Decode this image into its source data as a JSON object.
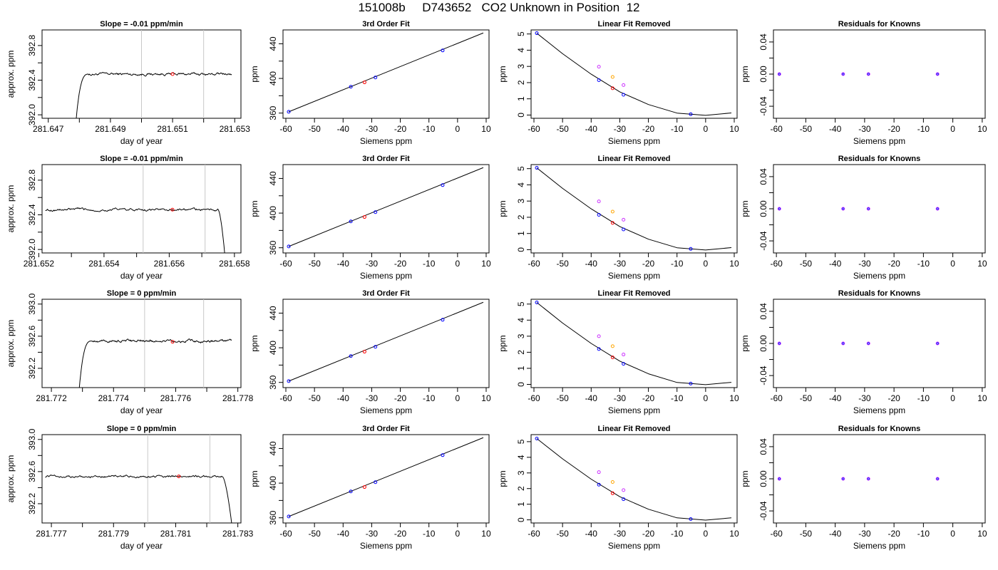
{
  "page": {
    "title": "151008b     D743652   CO2 Unknown in Position  12"
  },
  "colors": {
    "axis": "#000000",
    "vline": "#c8c8c8",
    "known": "#0000ff",
    "unknown": "#ff0000",
    "orange": "#ffa500",
    "magenta": "#cc33ff",
    "curve": "#000000"
  },
  "chart_data": [
    {
      "type": "line",
      "title": "Slope =  -0.01  ppm/min",
      "xlabel": "day of year",
      "ylabel": "approx. ppm",
      "xlim": [
        281.6468,
        281.6532
      ],
      "ylim": [
        391.96,
        392.98
      ],
      "xticks": [
        "281.647",
        "281.649",
        "281.651",
        "281.653"
      ],
      "xtickvals": [
        281.647,
        281.649,
        281.651,
        281.653
      ],
      "xminor": [
        281.648,
        281.65,
        281.652
      ],
      "yticks": [
        "392.0",
        "392.4",
        "392.8"
      ],
      "ytickvals": [
        392.0,
        392.4,
        392.8
      ],
      "yminor": [
        392.2,
        392.6
      ],
      "vlines": [
        281.65,
        281.652
      ],
      "trace": {
        "start_x": 281.6479,
        "end_x": 281.6529,
        "level": 392.47,
        "rise_from": 391.96,
        "rise_to_x": 281.6483,
        "noise": 0.012,
        "shape": "rise"
      },
      "marker": {
        "x": 281.651,
        "y": 392.47
      }
    },
    {
      "type": "line",
      "title": "3rd Order Fit",
      "xlabel": "Siemens ppm",
      "ylabel": "ppm",
      "xlim": [
        -61,
        11
      ],
      "ylim": [
        354,
        456
      ],
      "xticks": [
        "-60",
        "-50",
        "-40",
        "-30",
        "-20",
        "-10",
        "0",
        "10"
      ],
      "xtickvals": [
        -60,
        -50,
        -40,
        -30,
        -20,
        -10,
        0,
        10
      ],
      "yticks": [
        "360",
        "400",
        "440"
      ],
      "ytickvals": [
        360,
        400,
        440
      ],
      "yminor": [
        380,
        420
      ],
      "fit_line": {
        "x": [
          -59,
          9
        ],
        "y": [
          361.5,
          452.5
        ]
      },
      "knowns": {
        "x": [
          -59,
          -37.3,
          -28.7,
          -5.2
        ],
        "y": [
          361.5,
          390.4,
          401.1,
          432.3
        ]
      },
      "unknown": {
        "x": [
          -32.5
        ],
        "y": [
          395.5
        ]
      }
    },
    {
      "type": "scatter",
      "title": "Linear Fit Removed",
      "xlabel": "Siemens ppm",
      "ylabel": "ppm",
      "xlim": [
        -61,
        11
      ],
      "ylim": [
        -0.2,
        5.25
      ],
      "xticks": [
        "-60",
        "-50",
        "-40",
        "-30",
        "-20",
        "-10",
        "0",
        "10"
      ],
      "xtickvals": [
        -60,
        -50,
        -40,
        -30,
        -20,
        -10,
        0,
        10
      ],
      "yticks": [
        "0",
        "1",
        "2",
        "3",
        "4",
        "5"
      ],
      "ytickvals": [
        0,
        1,
        2,
        3,
        4,
        5
      ],
      "curve": {
        "x": [
          -59,
          -50,
          -40,
          -30,
          -20,
          -10,
          0,
          9
        ],
        "y": [
          5.05,
          3.78,
          2.52,
          1.43,
          0.65,
          0.12,
          -0.02,
          0.13
        ]
      },
      "knowns": {
        "x": [
          -59,
          -37.3,
          -28.7,
          -5.2
        ],
        "y": [
          5.05,
          2.15,
          1.25,
          0.05
        ]
      },
      "unknown": {
        "x": [
          -32.5
        ],
        "y": [
          1.65
        ]
      },
      "extra": [
        {
          "x": -37.3,
          "y": 2.98,
          "color": "magenta"
        },
        {
          "x": -32.5,
          "y": 2.35,
          "color": "orange"
        },
        {
          "x": -28.7,
          "y": 1.85,
          "color": "magenta"
        }
      ]
    },
    {
      "type": "scatter",
      "title": "Residuals for Knowns",
      "xlabel": "Siemens ppm",
      "ylabel": "ppm",
      "xlim": [
        -61,
        11
      ],
      "ylim": [
        -0.055,
        0.055
      ],
      "xticks": [
        "-60",
        "-50",
        "-40",
        "-30",
        "-20",
        "-10",
        "0",
        "10"
      ],
      "xtickvals": [
        -60,
        -50,
        -40,
        -30,
        -20,
        -10,
        0,
        10
      ],
      "yticks": [
        "-0.04",
        "0.00",
        "0.04"
      ],
      "ytickvals": [
        -0.04,
        0.0,
        0.04
      ],
      "yminor": [
        -0.02,
        0.02
      ],
      "points": {
        "x": [
          -59,
          -37.3,
          -28.7,
          -5.2
        ],
        "y": [
          0,
          0,
          0,
          0
        ]
      }
    },
    {
      "type": "line",
      "title": "Slope =  -0.01  ppm/min",
      "xlabel": "day of year",
      "ylabel": "approx. ppm",
      "xlim": [
        281.6521,
        281.6582
      ],
      "ylim": [
        391.96,
        392.98
      ],
      "xticks": [
        "281.652",
        "281.654",
        "281.656",
        "281.658"
      ],
      "xtickvals": [
        281.652,
        281.654,
        281.656,
        281.658
      ],
      "xminor": [
        281.653,
        281.655,
        281.657
      ],
      "yticks": [
        "392.0",
        "392.4",
        "392.8"
      ],
      "ytickvals": [
        392.0,
        392.4,
        392.8
      ],
      "yminor": [
        392.2,
        392.6
      ],
      "vlines": [
        281.6552,
        281.6571
      ],
      "trace": {
        "start_x": 281.6522,
        "end_x": 281.6577,
        "level": 392.46,
        "fall_to": 391.96,
        "fall_from_x": 281.6575,
        "noise": 0.012,
        "shape": "fall"
      },
      "marker": {
        "x": 281.6561,
        "y": 392.46
      }
    },
    {
      "type": "line",
      "title": "3rd Order Fit",
      "xlabel": "Siemens ppm",
      "ylabel": "ppm",
      "xlim": [
        -61,
        11
      ],
      "ylim": [
        354,
        456
      ],
      "xticks": [
        "-60",
        "-50",
        "-40",
        "-30",
        "-20",
        "-10",
        "0",
        "10"
      ],
      "xtickvals": [
        -60,
        -50,
        -40,
        -30,
        -20,
        -10,
        0,
        10
      ],
      "yticks": [
        "360",
        "400",
        "440"
      ],
      "ytickvals": [
        360,
        400,
        440
      ],
      "yminor": [
        380,
        420
      ],
      "fit_line": {
        "x": [
          -59,
          9
        ],
        "y": [
          361.5,
          452.5
        ]
      },
      "knowns": {
        "x": [
          -59,
          -37.3,
          -28.7,
          -5.2
        ],
        "y": [
          361.5,
          390.4,
          401.1,
          432.3
        ]
      },
      "unknown": {
        "x": [
          -32.5
        ],
        "y": [
          395.5
        ]
      }
    },
    {
      "type": "scatter",
      "title": "Linear Fit Removed",
      "xlabel": "Siemens ppm",
      "ylabel": "ppm",
      "xlim": [
        -61,
        11
      ],
      "ylim": [
        -0.2,
        5.25
      ],
      "xticks": [
        "-60",
        "-50",
        "-40",
        "-30",
        "-20",
        "-10",
        "0",
        "10"
      ],
      "xtickvals": [
        -60,
        -50,
        -40,
        -30,
        -20,
        -10,
        0,
        10
      ],
      "yticks": [
        "0",
        "1",
        "2",
        "3",
        "4",
        "5"
      ],
      "ytickvals": [
        0,
        1,
        2,
        3,
        4,
        5
      ],
      "curve": {
        "x": [
          -59,
          -50,
          -40,
          -30,
          -20,
          -10,
          0,
          9
        ],
        "y": [
          5.05,
          3.78,
          2.52,
          1.43,
          0.65,
          0.12,
          -0.02,
          0.13
        ]
      },
      "knowns": {
        "x": [
          -59,
          -37.3,
          -28.7,
          -5.2
        ],
        "y": [
          5.05,
          2.15,
          1.25,
          0.05
        ]
      },
      "unknown": {
        "x": [
          -32.5
        ],
        "y": [
          1.65
        ]
      },
      "extra": [
        {
          "x": -37.3,
          "y": 2.98,
          "color": "magenta"
        },
        {
          "x": -32.5,
          "y": 2.35,
          "color": "orange"
        },
        {
          "x": -28.7,
          "y": 1.85,
          "color": "magenta"
        }
      ]
    },
    {
      "type": "scatter",
      "title": "Residuals for Knowns",
      "xlabel": "Siemens ppm",
      "ylabel": "ppm",
      "xlim": [
        -61,
        11
      ],
      "ylim": [
        -0.055,
        0.055
      ],
      "xticks": [
        "-60",
        "-50",
        "-40",
        "-30",
        "-20",
        "-10",
        "0",
        "10"
      ],
      "xtickvals": [
        -60,
        -50,
        -40,
        -30,
        -20,
        -10,
        0,
        10
      ],
      "yticks": [
        "-0.04",
        "0.00",
        "0.04"
      ],
      "ytickvals": [
        -0.04,
        0.0,
        0.04
      ],
      "yminor": [
        -0.02,
        0.02
      ],
      "points": {
        "x": [
          -59,
          -37.3,
          -28.7,
          -5.2
        ],
        "y": [
          0,
          0,
          0,
          0
        ]
      }
    },
    {
      "type": "line",
      "title": "Slope =  0  ppm/min",
      "xlabel": "day of year",
      "ylabel": "approx. ppm",
      "xlim": [
        281.7717,
        281.7781
      ],
      "ylim": [
        391.96,
        393.06
      ],
      "xticks": [
        "281.772",
        "281.774",
        "281.776",
        "281.778"
      ],
      "xtickvals": [
        281.772,
        281.774,
        281.776,
        281.778
      ],
      "xminor": [
        281.773,
        281.775,
        281.777
      ],
      "yticks": [
        "392.2",
        "392.6",
        "393.0"
      ],
      "ytickvals": [
        392.2,
        392.6,
        393.0
      ],
      "yminor": [
        392.4,
        392.8
      ],
      "vlines": [
        281.775,
        281.7769
      ],
      "trace": {
        "start_x": 281.7729,
        "end_x": 281.7778,
        "level": 392.54,
        "rise_from": 391.96,
        "rise_to_x": 281.7733,
        "noise": 0.014,
        "shape": "rise"
      },
      "marker": {
        "x": 281.7759,
        "y": 392.53
      }
    },
    {
      "type": "line",
      "title": "3rd Order Fit",
      "xlabel": "Siemens ppm",
      "ylabel": "ppm",
      "xlim": [
        -61,
        11
      ],
      "ylim": [
        354,
        456
      ],
      "xticks": [
        "-60",
        "-50",
        "-40",
        "-30",
        "-20",
        "-10",
        "0",
        "10"
      ],
      "xtickvals": [
        -60,
        -50,
        -40,
        -30,
        -20,
        -10,
        0,
        10
      ],
      "yticks": [
        "360",
        "400",
        "440"
      ],
      "ytickvals": [
        360,
        400,
        440
      ],
      "yminor": [
        380,
        420
      ],
      "fit_line": {
        "x": [
          -59,
          9
        ],
        "y": [
          361.5,
          452.5
        ]
      },
      "knowns": {
        "x": [
          -59,
          -37.3,
          -28.7,
          -5.2
        ],
        "y": [
          361.5,
          390.4,
          401.1,
          432.3
        ]
      },
      "unknown": {
        "x": [
          -32.5
        ],
        "y": [
          395.5
        ]
      }
    },
    {
      "type": "scatter",
      "title": "Linear Fit Removed",
      "xlabel": "Siemens ppm",
      "ylabel": "ppm",
      "xlim": [
        -61,
        11
      ],
      "ylim": [
        -0.2,
        5.3
      ],
      "xticks": [
        "-60",
        "-50",
        "-40",
        "-30",
        "-20",
        "-10",
        "0",
        "10"
      ],
      "xtickvals": [
        -60,
        -50,
        -40,
        -30,
        -20,
        -10,
        0,
        10
      ],
      "yticks": [
        "0",
        "1",
        "2",
        "3",
        "4",
        "5"
      ],
      "ytickvals": [
        0,
        1,
        2,
        3,
        4,
        5
      ],
      "curve": {
        "x": [
          -59,
          -50,
          -40,
          -30,
          -20,
          -10,
          0,
          9
        ],
        "y": [
          5.1,
          3.82,
          2.55,
          1.45,
          0.66,
          0.12,
          -0.02,
          0.13
        ]
      },
      "knowns": {
        "x": [
          -59,
          -37.3,
          -28.7,
          -5.2
        ],
        "y": [
          5.1,
          2.2,
          1.28,
          0.05
        ]
      },
      "unknown": {
        "x": [
          -32.5
        ],
        "y": [
          1.68
        ]
      },
      "extra": [
        {
          "x": -37.3,
          "y": 3.0,
          "color": "magenta"
        },
        {
          "x": -32.5,
          "y": 2.38,
          "color": "orange"
        },
        {
          "x": -28.7,
          "y": 1.86,
          "color": "magenta"
        }
      ]
    },
    {
      "type": "scatter",
      "title": "Residuals for Knowns",
      "xlabel": "Siemens ppm",
      "ylabel": "ppm",
      "xlim": [
        -61,
        11
      ],
      "ylim": [
        -0.055,
        0.055
      ],
      "xticks": [
        "-60",
        "-50",
        "-40",
        "-30",
        "-20",
        "-10",
        "0",
        "10"
      ],
      "xtickvals": [
        -60,
        -50,
        -40,
        -30,
        -20,
        -10,
        0,
        10
      ],
      "yticks": [
        "-0.04",
        "0.00",
        "0.04"
      ],
      "ytickvals": [
        -0.04,
        0.0,
        0.04
      ],
      "yminor": [
        -0.02,
        0.02
      ],
      "points": {
        "x": [
          -59,
          -37.3,
          -28.7,
          -5.2
        ],
        "y": [
          0,
          0,
          0,
          0
        ]
      }
    },
    {
      "type": "line",
      "title": "Slope =  0  ppm/min",
      "xlabel": "day of year",
      "ylabel": "approx. ppm",
      "xlim": [
        281.7767,
        281.7831
      ],
      "ylim": [
        391.96,
        393.06
      ],
      "xticks": [
        "281.777",
        "281.779",
        "281.781",
        "281.783"
      ],
      "xtickvals": [
        281.777,
        281.779,
        281.781,
        281.783
      ],
      "xminor": [
        281.778,
        281.78,
        281.782
      ],
      "yticks": [
        "392.2",
        "392.6",
        "393.0"
      ],
      "ytickvals": [
        392.2,
        392.6,
        393.0
      ],
      "yminor": [
        392.4,
        392.8
      ],
      "vlines": [
        281.7801,
        281.7821
      ],
      "trace": {
        "start_x": 281.7768,
        "end_x": 281.7828,
        "level": 392.54,
        "fall_to": 391.96,
        "fall_from_x": 281.7825,
        "noise": 0.012,
        "shape": "fall"
      },
      "marker": {
        "x": 281.7811,
        "y": 392.54
      }
    },
    {
      "type": "line",
      "title": "3rd Order Fit",
      "xlabel": "Siemens ppm",
      "ylabel": "ppm",
      "xlim": [
        -61,
        11
      ],
      "ylim": [
        354,
        456
      ],
      "xticks": [
        "-60",
        "-50",
        "-40",
        "-30",
        "-20",
        "-10",
        "0",
        "10"
      ],
      "xtickvals": [
        -60,
        -50,
        -40,
        -30,
        -20,
        -10,
        0,
        10
      ],
      "yticks": [
        "360",
        "400",
        "440"
      ],
      "ytickvals": [
        360,
        400,
        440
      ],
      "yminor": [
        380,
        420
      ],
      "fit_line": {
        "x": [
          -59,
          9
        ],
        "y": [
          361.5,
          452.5
        ]
      },
      "knowns": {
        "x": [
          -59,
          -37.3,
          -28.7,
          -5.2
        ],
        "y": [
          361.5,
          390.4,
          401.1,
          432.3
        ]
      },
      "unknown": {
        "x": [
          -32.5
        ],
        "y": [
          395.5
        ]
      }
    },
    {
      "type": "scatter",
      "title": "Linear Fit Removed",
      "xlabel": "Siemens ppm",
      "ylabel": "ppm",
      "xlim": [
        -61,
        11
      ],
      "ylim": [
        -0.2,
        5.45
      ],
      "xticks": [
        "-60",
        "-50",
        "-40",
        "-30",
        "-20",
        "-10",
        "0",
        "10"
      ],
      "xtickvals": [
        -60,
        -50,
        -40,
        -30,
        -20,
        -10,
        0,
        10
      ],
      "yticks": [
        "0",
        "1",
        "2",
        "3",
        "4",
        "5"
      ],
      "ytickvals": [
        0,
        1,
        2,
        3,
        4,
        5
      ],
      "curve": {
        "x": [
          -59,
          -50,
          -40,
          -30,
          -20,
          -10,
          0,
          9
        ],
        "y": [
          5.2,
          3.9,
          2.6,
          1.48,
          0.68,
          0.13,
          -0.02,
          0.13
        ]
      },
      "knowns": {
        "x": [
          -59,
          -37.3,
          -28.7,
          -5.2
        ],
        "y": [
          5.2,
          2.25,
          1.32,
          0.05
        ]
      },
      "unknown": {
        "x": [
          -32.5
        ],
        "y": [
          1.7
        ]
      },
      "extra": [
        {
          "x": -37.3,
          "y": 3.05,
          "color": "magenta"
        },
        {
          "x": -32.5,
          "y": 2.42,
          "color": "orange"
        },
        {
          "x": -28.7,
          "y": 1.9,
          "color": "magenta"
        }
      ]
    },
    {
      "type": "scatter",
      "title": "Residuals for Knowns",
      "xlabel": "Siemens ppm",
      "ylabel": "ppm",
      "xlim": [
        -61,
        11
      ],
      "ylim": [
        -0.055,
        0.055
      ],
      "xticks": [
        "-60",
        "-50",
        "-40",
        "-30",
        "-20",
        "-10",
        "0",
        "10"
      ],
      "xtickvals": [
        -60,
        -50,
        -40,
        -30,
        -20,
        -10,
        0,
        10
      ],
      "yticks": [
        "-0.04",
        "0.00",
        "0.04"
      ],
      "ytickvals": [
        -0.04,
        0.0,
        0.04
      ],
      "yminor": [
        -0.02,
        0.02
      ],
      "points": {
        "x": [
          -59,
          -37.3,
          -28.7,
          -5.2
        ],
        "y": [
          0,
          0,
          0,
          0
        ]
      }
    }
  ]
}
